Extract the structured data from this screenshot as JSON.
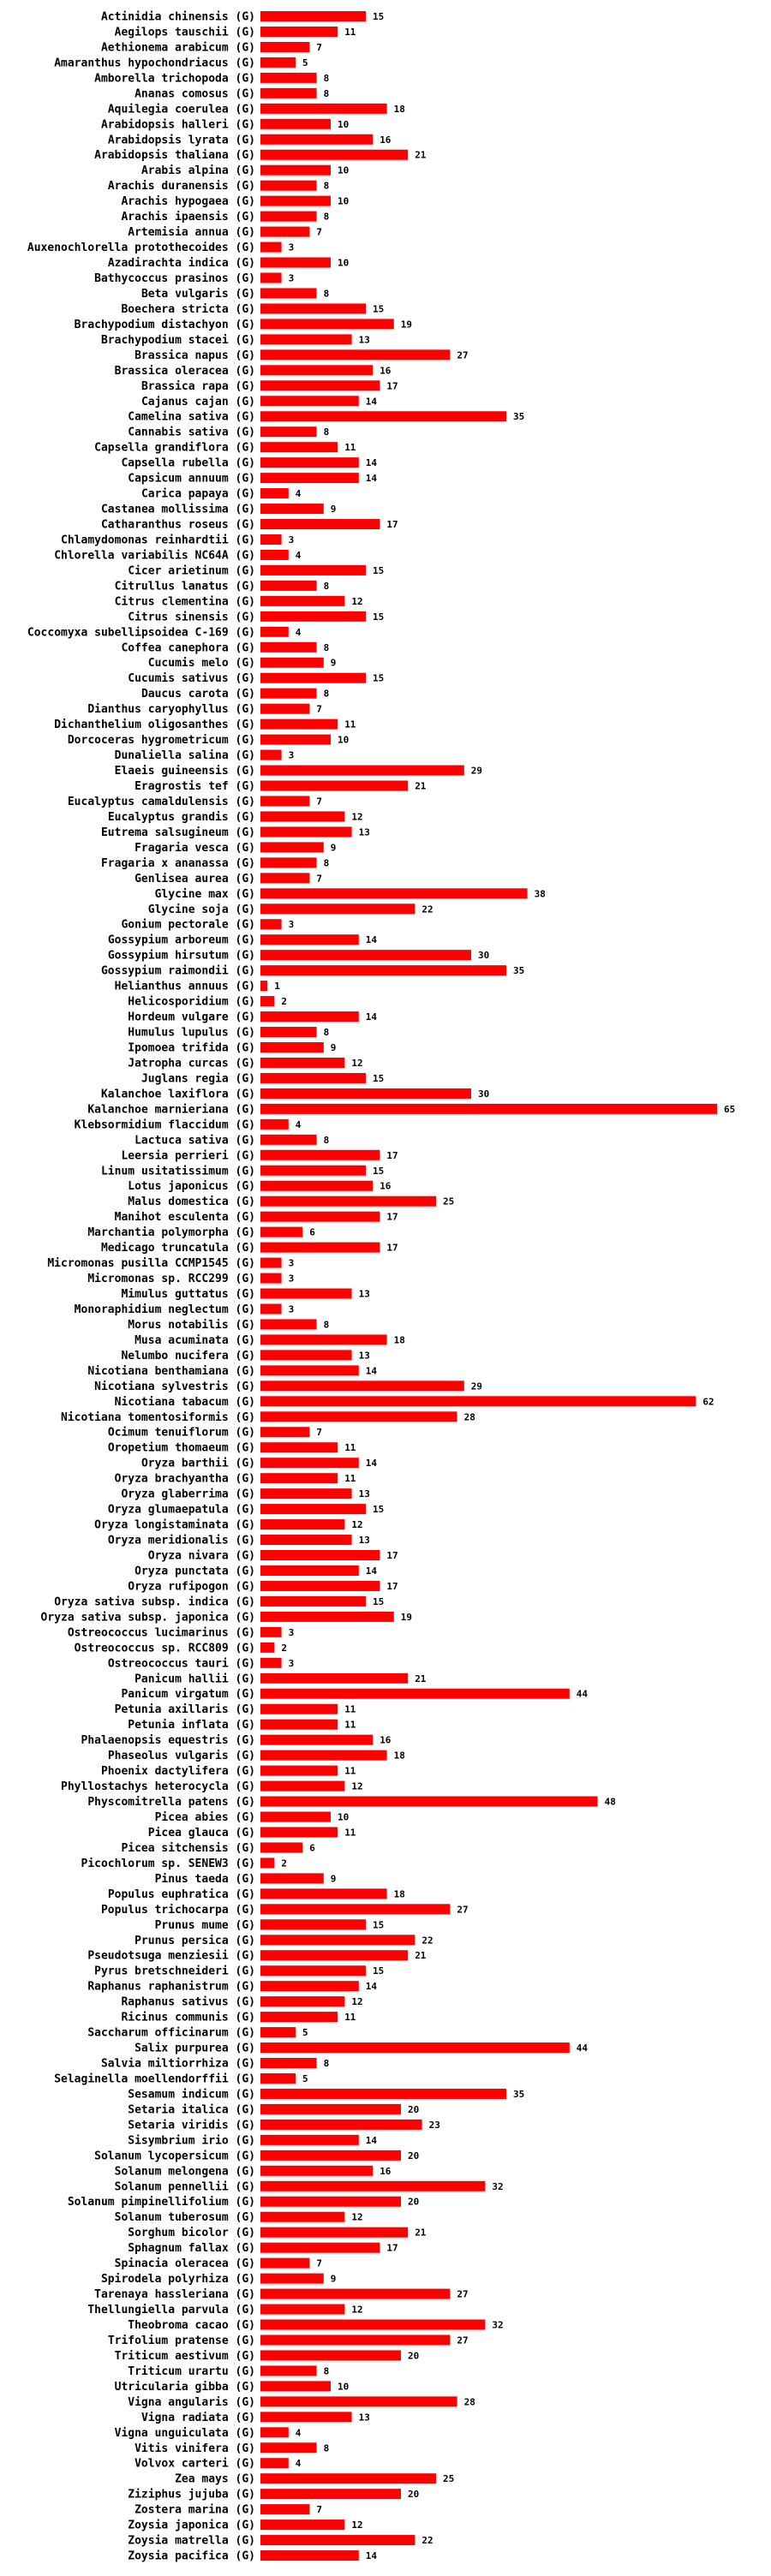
{
  "chart_data": {
    "type": "bar",
    "orientation": "horizontal",
    "title": "",
    "xlabel": "",
    "ylabel": "",
    "bar_color": "#ff0000",
    "suffix": "(G)",
    "xlim": [
      0,
      65
    ],
    "categories": [
      "Actinidia chinensis",
      "Aegilops tauschii",
      "Aethionema arabicum",
      "Amaranthus hypochondriacus",
      "Amborella trichopoda",
      "Ananas comosus",
      "Aquilegia coerulea",
      "Arabidopsis halleri",
      "Arabidopsis lyrata",
      "Arabidopsis thaliana",
      "Arabis alpina",
      "Arachis duranensis",
      "Arachis hypogaea",
      "Arachis ipaensis",
      "Artemisia annua",
      "Auxenochlorella protothecoides",
      "Azadirachta indica",
      "Bathycoccus prasinos",
      "Beta vulgaris",
      "Boechera stricta",
      "Brachypodium distachyon",
      "Brachypodium stacei",
      "Brassica napus",
      "Brassica oleracea",
      "Brassica rapa",
      "Cajanus cajan",
      "Camelina sativa",
      "Cannabis sativa",
      "Capsella grandiflora",
      "Capsella rubella",
      "Capsicum annuum",
      "Carica papaya",
      "Castanea mollissima",
      "Catharanthus roseus",
      "Chlamydomonas reinhardtii",
      "Chlorella variabilis NC64A",
      "Cicer arietinum",
      "Citrullus lanatus",
      "Citrus clementina",
      "Citrus sinensis",
      "Coccomyxa subellipsoidea C-169",
      "Coffea canephora",
      "Cucumis melo",
      "Cucumis sativus",
      "Daucus carota",
      "Dianthus caryophyllus",
      "Dichanthelium oligosanthes",
      "Dorcoceras hygrometricum",
      "Dunaliella salina",
      "Elaeis guineensis",
      "Eragrostis tef",
      "Eucalyptus camaldulensis",
      "Eucalyptus grandis",
      "Eutrema salsugineum",
      "Fragaria vesca",
      "Fragaria x ananassa",
      "Genlisea aurea",
      "Glycine max",
      "Glycine soja",
      "Gonium pectorale",
      "Gossypium arboreum",
      "Gossypium hirsutum",
      "Gossypium raimondii",
      "Helianthus annuus",
      "Helicosporidium",
      "Hordeum vulgare",
      "Humulus lupulus",
      "Ipomoea trifida",
      "Jatropha curcas",
      "Juglans regia",
      "Kalanchoe laxiflora",
      "Kalanchoe marnieriana",
      "Klebsormidium flaccidum",
      "Lactuca sativa",
      "Leersia perrieri",
      "Linum usitatissimum",
      "Lotus japonicus",
      "Malus domestica",
      "Manihot esculenta",
      "Marchantia polymorpha",
      "Medicago truncatula",
      "Micromonas pusilla CCMP1545",
      "Micromonas sp. RCC299",
      "Mimulus guttatus",
      "Monoraphidium neglectum",
      "Morus notabilis",
      "Musa acuminata",
      "Nelumbo nucifera",
      "Nicotiana benthamiana",
      "Nicotiana sylvestris",
      "Nicotiana tabacum",
      "Nicotiana tomentosiformis",
      "Ocimum tenuiflorum",
      "Oropetium thomaeum",
      "Oryza barthii",
      "Oryza brachyantha",
      "Oryza glaberrima",
      "Oryza glumaepatula",
      "Oryza longistaminata",
      "Oryza meridionalis",
      "Oryza nivara",
      "Oryza punctata",
      "Oryza rufipogon",
      "Oryza sativa subsp. indica",
      "Oryza sativa subsp. japonica",
      "Ostreococcus lucimarinus",
      "Ostreococcus sp. RCC809",
      "Ostreococcus tauri",
      "Panicum hallii",
      "Panicum virgatum",
      "Petunia axillaris",
      "Petunia inflata",
      "Phalaenopsis equestris",
      "Phaseolus vulgaris",
      "Phoenix dactylifera",
      "Phyllostachys heterocycla",
      "Physcomitrella patens",
      "Picea abies",
      "Picea glauca",
      "Picea sitchensis",
      "Picochlorum sp. SENEW3",
      "Pinus taeda",
      "Populus euphratica",
      "Populus trichocarpa",
      "Prunus mume",
      "Prunus persica",
      "Pseudotsuga menziesii",
      "Pyrus bretschneideri",
      "Raphanus raphanistrum",
      "Raphanus sativus",
      "Ricinus communis",
      "Saccharum officinarum",
      "Salix purpurea",
      "Salvia miltiorrhiza",
      "Selaginella moellendorffii",
      "Sesamum indicum",
      "Setaria italica",
      "Setaria viridis",
      "Sisymbrium irio",
      "Solanum lycopersicum",
      "Solanum melongena",
      "Solanum pennellii",
      "Solanum pimpinellifolium",
      "Solanum tuberosum",
      "Sorghum bicolor",
      "Sphagnum fallax",
      "Spinacia oleracea",
      "Spirodela polyrhiza",
      "Tarenaya hassleriana",
      "Thellungiella parvula",
      "Theobroma cacao",
      "Trifolium pratense",
      "Triticum aestivum",
      "Triticum urartu",
      "Utricularia gibba",
      "Vigna angularis",
      "Vigna radiata",
      "Vigna unguiculata",
      "Vitis vinifera",
      "Volvox carteri",
      "Zea mays",
      "Ziziphus jujuba",
      "Zostera marina",
      "Zoysia japonica",
      "Zoysia matrella",
      "Zoysia pacifica"
    ],
    "values": [
      15,
      11,
      7,
      5,
      8,
      8,
      18,
      10,
      16,
      21,
      10,
      8,
      10,
      8,
      7,
      3,
      10,
      3,
      8,
      15,
      19,
      13,
      27,
      16,
      17,
      14,
      35,
      8,
      11,
      14,
      14,
      4,
      9,
      17,
      3,
      4,
      15,
      8,
      12,
      15,
      4,
      8,
      9,
      15,
      8,
      7,
      11,
      10,
      3,
      29,
      21,
      7,
      12,
      13,
      9,
      8,
      7,
      38,
      22,
      3,
      14,
      30,
      35,
      1,
      2,
      14,
      8,
      9,
      12,
      15,
      30,
      65,
      4,
      8,
      17,
      15,
      16,
      25,
      17,
      6,
      17,
      3,
      3,
      13,
      3,
      8,
      18,
      13,
      14,
      29,
      62,
      28,
      7,
      11,
      14,
      11,
      13,
      15,
      12,
      13,
      17,
      14,
      17,
      15,
      19,
      3,
      2,
      3,
      21,
      44,
      11,
      11,
      16,
      18,
      11,
      12,
      48,
      10,
      11,
      6,
      2,
      9,
      18,
      27,
      15,
      22,
      21,
      15,
      14,
      12,
      11,
      5,
      44,
      8,
      5,
      35,
      20,
      23,
      14,
      20,
      16,
      32,
      20,
      12,
      21,
      17,
      7,
      9,
      27,
      12,
      32,
      27,
      20,
      8,
      10,
      28,
      13,
      4,
      8,
      4,
      25,
      20,
      7,
      12,
      22,
      14
    ]
  }
}
